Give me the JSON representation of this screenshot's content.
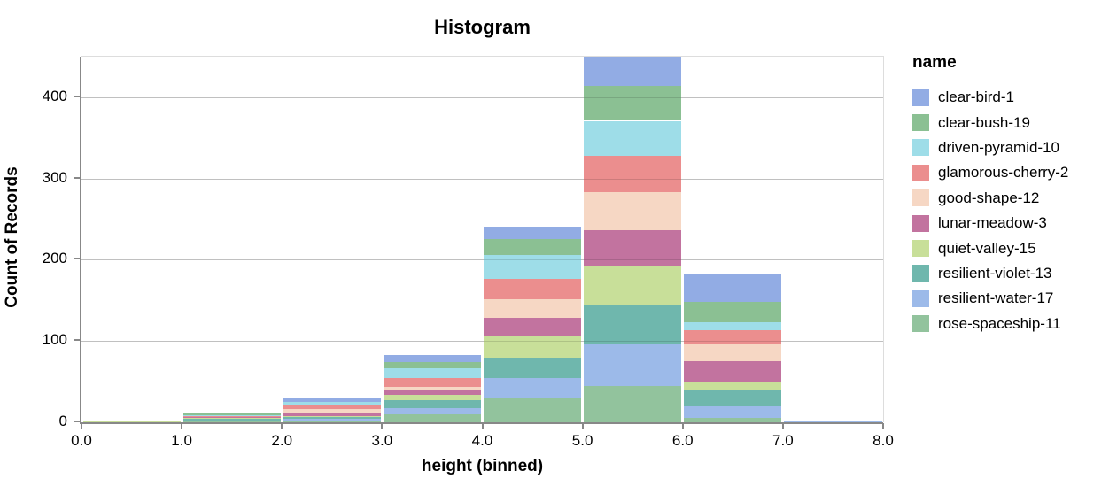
{
  "chart_data": {
    "type": "bar",
    "variant": "stacked-histogram",
    "title": "Histogram",
    "xlabel": "height (binned)",
    "ylabel": "Count of Records",
    "legend_title": "name",
    "xlim": [
      0,
      8
    ],
    "ylim": [
      0,
      450
    ],
    "x_ticks": [
      "0.0",
      "1.0",
      "2.0",
      "3.0",
      "4.0",
      "5.0",
      "6.0",
      "7.0",
      "8.0"
    ],
    "y_ticks": [
      0,
      100,
      200,
      300,
      400
    ],
    "grid": true,
    "legend_position": "right",
    "bin_edges": [
      0,
      1,
      2,
      3,
      4,
      5,
      6,
      7,
      8
    ],
    "stack_order": "bottom-is-last-series",
    "bin_totals": [
      1,
      12,
      30,
      83,
      241,
      450,
      183,
      2
    ],
    "series": [
      {
        "name": "clear-bird-1",
        "color": "#92ace4",
        "values": [
          0,
          1,
          5,
          9,
          15,
          36,
          35,
          0
        ]
      },
      {
        "name": "clear-bush-19",
        "color": "#8bc093",
        "values": [
          0,
          2,
          0,
          7,
          20,
          43,
          25,
          0
        ]
      },
      {
        "name": "driven-pyramid-10",
        "color": "#9edde8",
        "values": [
          0,
          1,
          4,
          12,
          30,
          43,
          10,
          0
        ]
      },
      {
        "name": "glamorous-cherry-2",
        "color": "#eb8e8e",
        "values": [
          0,
          2,
          5,
          11,
          25,
          45,
          17,
          0
        ]
      },
      {
        "name": "good-shape-12",
        "color": "#f6d7c4",
        "values": [
          0,
          0,
          4,
          4,
          22,
          47,
          21,
          0
        ]
      },
      {
        "name": "lunar-meadow-3",
        "color": "#c2739f",
        "values": [
          0,
          1,
          4,
          6,
          22,
          44,
          25,
          1
        ]
      },
      {
        "name": "quiet-valley-15",
        "color": "#c8df99",
        "values": [
          1,
          1,
          1,
          7,
          28,
          47,
          11,
          0
        ]
      },
      {
        "name": "resilient-violet-13",
        "color": "#6fb7ad",
        "values": [
          0,
          2,
          3,
          10,
          24,
          49,
          19,
          0
        ]
      },
      {
        "name": "resilient-water-17",
        "color": "#9cbae9",
        "values": [
          0,
          1,
          2,
          7,
          26,
          51,
          15,
          1
        ]
      },
      {
        "name": "rose-spaceship-11",
        "color": "#92c39d",
        "values": [
          0,
          1,
          2,
          10,
          29,
          45,
          5,
          0
        ]
      }
    ],
    "colors": {
      "gridline": "#dddddd",
      "axis_domain": "#888888",
      "text": "#000000",
      "background": "#ffffff"
    }
  }
}
